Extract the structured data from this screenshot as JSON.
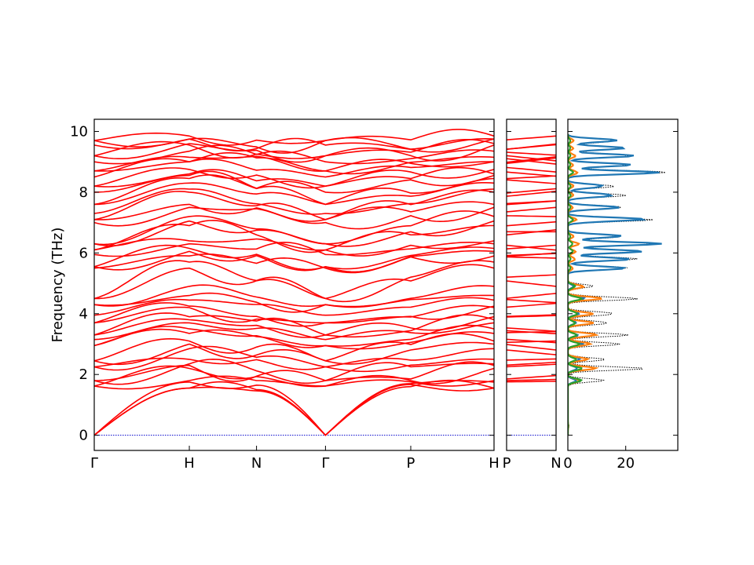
{
  "chart_data": [
    {
      "type": "line",
      "panel": "band-structure-main",
      "ylabel": "Frequency (THz)",
      "ylim": [
        -0.5,
        10.4
      ],
      "yticks": [
        0,
        2,
        4,
        6,
        8,
        10
      ],
      "path_labels": [
        "Γ",
        "H",
        "N",
        "Γ",
        "P",
        "H"
      ],
      "path_positions": [
        0,
        0.2378,
        0.4059,
        0.5784,
        0.7917,
        1.0
      ],
      "band_color": "#ff0000",
      "zero_line_color": "#0000cc",
      "band_endpoint_values": {
        "Gamma": [
          0,
          0,
          0,
          1.62,
          1.62,
          1.8,
          1.8,
          2.25,
          2.25,
          2.45,
          2.45,
          2.95,
          2.95,
          3.15,
          3.3,
          3.3,
          3.7,
          3.7,
          3.95,
          4.3,
          4.3,
          4.5,
          4.5,
          5.5,
          5.55,
          5.55,
          5.95,
          6.1,
          6.1,
          6.3,
          6.3,
          7.0,
          7.1,
          7.1,
          7.3,
          7.6,
          7.6,
          8.0,
          8.2,
          8.2,
          8.5,
          8.7,
          8.7,
          9.0,
          9.2,
          9.2,
          9.55,
          9.7,
          9.7
        ],
        "H": [
          1.55,
          1.55,
          1.75,
          1.8,
          2.2,
          2.3,
          2.35,
          2.5,
          2.85,
          3.0,
          3.1,
          3.35,
          3.5,
          3.7,
          3.8,
          3.9,
          4.2,
          4.25,
          4.45,
          4.6,
          4.9,
          5.5,
          5.7,
          5.9,
          6.05,
          6.15,
          6.3,
          6.4,
          6.9,
          7.05,
          7.2,
          7.5,
          7.6,
          8.0,
          8.1,
          8.3,
          8.45,
          8.6,
          8.75,
          9.0,
          9.15,
          9.35,
          9.6,
          9.75,
          9.85,
          9.75,
          9.55,
          9.0,
          8.55
        ]
      }
    },
    {
      "type": "line",
      "panel": "band-structure-segment",
      "path_labels": [
        "P",
        "N"
      ],
      "path_positions": [
        0,
        1
      ],
      "ylim": [
        -0.5,
        10.4
      ],
      "band_color": "#ff0000",
      "zero_line_color": "#0000cc"
    },
    {
      "type": "line",
      "panel": "density-of-states",
      "xticks": [
        0,
        20
      ],
      "xlim": [
        0,
        38
      ],
      "ylim": [
        -0.5,
        10.4
      ],
      "series": [
        {
          "color": "#000000",
          "style": "dotted",
          "peaks": [
            [
              0.3,
              0.5
            ],
            [
              1.8,
              13
            ],
            [
              2.2,
              28
            ],
            [
              2.5,
              14
            ],
            [
              3.0,
              18
            ],
            [
              3.3,
              21
            ],
            [
              3.7,
              17
            ],
            [
              4.0,
              20
            ],
            [
              4.5,
              26
            ],
            [
              4.9,
              10
            ],
            [
              5.5,
              22
            ],
            [
              5.8,
              25
            ],
            [
              6.05,
              28
            ],
            [
              6.3,
              36
            ],
            [
              6.55,
              22
            ],
            [
              7.1,
              34
            ],
            [
              7.5,
              20
            ],
            [
              7.9,
              21
            ],
            [
              8.2,
              17
            ],
            [
              8.65,
              36
            ],
            [
              8.9,
              24
            ],
            [
              9.2,
              25
            ],
            [
              9.45,
              22
            ],
            [
              9.7,
              20
            ]
          ]
        },
        {
          "color": "#1f77b4",
          "style": "solid",
          "peaks": [
            [
              0.3,
              0.2
            ],
            [
              1.8,
              3
            ],
            [
              2.2,
              4
            ],
            [
              2.5,
              5
            ],
            [
              3.0,
              6
            ],
            [
              3.3,
              4
            ],
            [
              3.7,
              3
            ],
            [
              4.0,
              4
            ],
            [
              4.5,
              7
            ],
            [
              4.9,
              2
            ],
            [
              5.5,
              20
            ],
            [
              5.8,
              22
            ],
            [
              6.05,
              26
            ],
            [
              6.3,
              33
            ],
            [
              6.55,
              20
            ],
            [
              7.1,
              30
            ],
            [
              7.5,
              18
            ],
            [
              7.9,
              19
            ],
            [
              8.2,
              15
            ],
            [
              8.65,
              32
            ],
            [
              8.9,
              22
            ],
            [
              9.2,
              23
            ],
            [
              9.45,
              20
            ],
            [
              9.7,
              18
            ]
          ]
        },
        {
          "color": "#ff7f0e",
          "style": "solid",
          "peaks": [
            [
              0.3,
              0.2
            ],
            [
              1.8,
              5
            ],
            [
              2.2,
              10
            ],
            [
              2.5,
              7
            ],
            [
              3.0,
              9
            ],
            [
              3.3,
              11
            ],
            [
              3.7,
              9
            ],
            [
              4.0,
              9
            ],
            [
              4.5,
              12
            ],
            [
              4.9,
              6
            ],
            [
              5.5,
              2
            ],
            [
              5.8,
              3
            ],
            [
              6.05,
              3
            ],
            [
              6.3,
              4
            ],
            [
              6.55,
              2
            ],
            [
              7.1,
              3
            ],
            [
              7.5,
              2
            ],
            [
              7.9,
              2
            ],
            [
              8.2,
              2
            ],
            [
              8.65,
              4
            ],
            [
              8.9,
              2
            ],
            [
              9.2,
              3
            ],
            [
              9.45,
              2
            ],
            [
              9.7,
              2
            ]
          ]
        },
        {
          "color": "#2ca02c",
          "style": "solid",
          "peaks": [
            [
              0.3,
              0.1
            ],
            [
              1.8,
              5
            ],
            [
              2.2,
              5
            ],
            [
              2.5,
              3
            ],
            [
              3.0,
              4
            ],
            [
              3.3,
              3
            ],
            [
              3.7,
              3
            ],
            [
              4.0,
              4
            ],
            [
              4.5,
              5
            ],
            [
              4.9,
              3
            ],
            [
              5.5,
              1
            ],
            [
              5.8,
              1
            ],
            [
              6.05,
              2
            ],
            [
              6.3,
              2
            ],
            [
              6.55,
              1
            ],
            [
              7.1,
              2
            ],
            [
              7.5,
              1
            ],
            [
              7.9,
              1
            ],
            [
              8.2,
              1
            ],
            [
              8.65,
              2
            ],
            [
              8.9,
              1
            ],
            [
              9.2,
              1
            ],
            [
              9.45,
              1
            ],
            [
              9.7,
              1
            ]
          ]
        }
      ]
    }
  ]
}
